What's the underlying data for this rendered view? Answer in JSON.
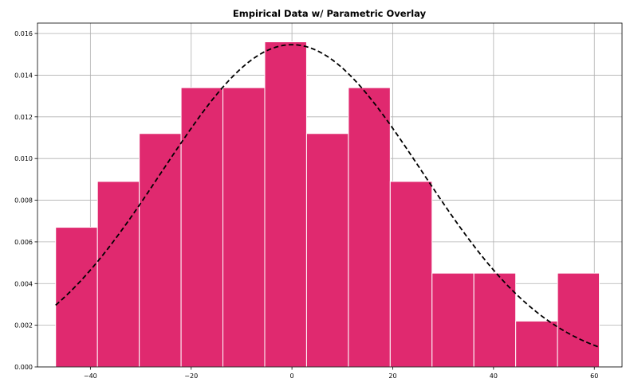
{
  "chart_data": {
    "type": "bar",
    "title": "Empirical Data w/ Parametric Overlay",
    "xlabel": "",
    "ylabel": "",
    "xlim": [
      -50.5,
      65.5
    ],
    "ylim": [
      0,
      0.0165
    ],
    "grid": true,
    "x_ticks": [
      -40,
      -20,
      0,
      20,
      40,
      60
    ],
    "x_tick_labels": [
      "−40",
      "−20",
      "0",
      "20",
      "40",
      "60"
    ],
    "y_ticks": [
      0,
      0.002,
      0.004,
      0.006,
      0.008,
      0.01,
      0.012,
      0.014,
      0.016
    ],
    "y_tick_labels": [
      "0.000",
      "0.002",
      "0.004",
      "0.006",
      "0.008",
      "0.010",
      "0.012",
      "0.014",
      "0.016"
    ],
    "bin_edges": [
      -46.9,
      -38.6,
      -30.3,
      -22.0,
      -13.7,
      -5.4,
      2.9,
      11.2,
      19.5,
      27.8,
      36.1,
      44.4,
      52.7,
      61.0
    ],
    "densities": [
      0.0067,
      0.0089,
      0.0112,
      0.0134,
      0.0134,
      0.0156,
      0.0112,
      0.0134,
      0.0089,
      0.0045,
      0.0045,
      0.0022,
      0.0045
    ],
    "bar_color": "#e0296f",
    "overlay": {
      "type": "normal_pdf",
      "mean": 0.0,
      "std": 25.8,
      "x_range": [
        -46.9,
        61.0
      ],
      "color": "#000000",
      "line_style": "dashed"
    }
  }
}
